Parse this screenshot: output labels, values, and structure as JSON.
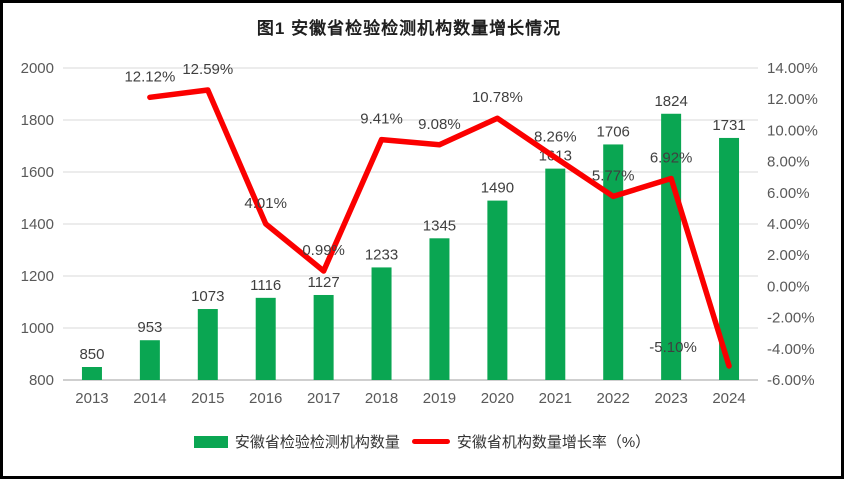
{
  "title": "图1 安徽省检验检测机构数量增长情况",
  "legend": {
    "bars": "安徽省检验检测机构数量",
    "line": "安徽省机构数量增长率（%）"
  },
  "colors": {
    "bar": "#0aa652",
    "line": "#fb0000",
    "grid": "#d9d9d9",
    "axis_line": "#bfbfbf",
    "axis_text": "#595959",
    "label_text": "#3f3f3f",
    "title_text": "#1f1f1f"
  },
  "chart_data": {
    "type": "bar",
    "subtype": "bar+line combo, dual axis",
    "title": "图1 安徽省检验检测机构数量增长情况",
    "categories": [
      "2013",
      "2014",
      "2015",
      "2016",
      "2017",
      "2018",
      "2019",
      "2020",
      "2021",
      "2022",
      "2023",
      "2024"
    ],
    "series": [
      {
        "name": "安徽省检验检测机构数量",
        "type": "bar",
        "axis": "left",
        "values": [
          850,
          953,
          1073,
          1116,
          1127,
          1233,
          1345,
          1490,
          1613,
          1706,
          1824,
          1731
        ],
        "labels": [
          "850",
          "953",
          "1073",
          "1116",
          "1127",
          "1233",
          "1345",
          "1490",
          "1613",
          "1706",
          "1824",
          "1731"
        ]
      },
      {
        "name": "安徽省机构数量增长率（%）",
        "type": "line",
        "axis": "right",
        "values": [
          null,
          12.12,
          12.59,
          4.01,
          0.99,
          9.41,
          9.08,
          10.78,
          8.26,
          5.77,
          6.92,
          -5.1
        ],
        "labels": [
          null,
          "12.12%",
          "12.59%",
          "4.01%",
          "0.99%",
          "9.41%",
          "9.08%",
          "10.78%",
          "8.26%",
          "5.77%",
          "6.92%",
          "-5.10%"
        ]
      }
    ],
    "left_axis": {
      "min": 800,
      "max": 2000,
      "step": 200,
      "ticks": [
        "800",
        "1000",
        "1200",
        "1400",
        "1600",
        "1800",
        "2000"
      ]
    },
    "right_axis": {
      "min": -6,
      "max": 14,
      "step": 2,
      "ticks": [
        "-6.00%",
        "-4.00%",
        "-2.00%",
        "0.00%",
        "2.00%",
        "4.00%",
        "6.00%",
        "8.00%",
        "10.00%",
        "12.00%",
        "14.00%"
      ]
    },
    "grid": "horizontal gridlines on left-axis ticks",
    "legend_position": "bottom"
  }
}
